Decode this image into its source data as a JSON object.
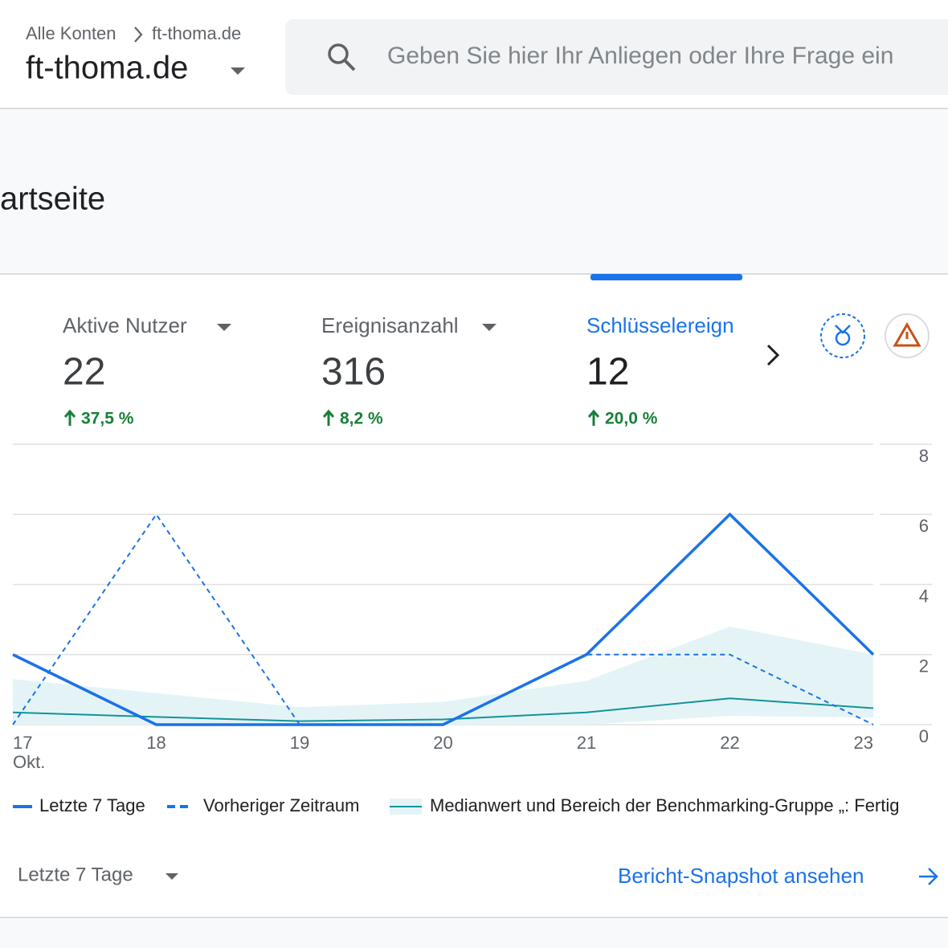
{
  "header": {
    "breadcrumb": [
      "Alle Konten",
      "ft-thoma.de"
    ],
    "property": "ft-thoma.de",
    "search_placeholder": "Geben Sie hier Ihr Anliegen oder Ihre Frage ein"
  },
  "page_title": "artseite",
  "metrics": [
    {
      "label": "Aktive Nutzer",
      "value": 22,
      "change": "37,5 %"
    },
    {
      "label": "Ereignisanzahl",
      "value": 316,
      "change": "8,2 %"
    },
    {
      "label": "Schlüsselereign",
      "value": 12,
      "change": "20,0 %"
    }
  ],
  "chart_data": {
    "type": "line",
    "categories": [
      "17",
      "18",
      "19",
      "20",
      "21",
      "22",
      "23"
    ],
    "x_sublabel": "Okt.",
    "ylim": [
      0,
      8
    ],
    "yticks": [
      0,
      2,
      4,
      6,
      8
    ],
    "grid": true,
    "series": [
      {
        "name": "Letzte 7 Tage",
        "color": "#1a73e8",
        "dashed": false,
        "values": [
          2,
          0,
          0,
          0,
          2,
          6,
          2
        ]
      },
      {
        "name": "Vorheriger Zeitraum",
        "color": "#1a73e8",
        "dashed": true,
        "values": [
          0,
          6,
          0,
          0,
          2,
          2,
          0
        ]
      },
      {
        "name": "Medianwert und Bereich der Benchmarking-Gruppe „: Fertig",
        "color": "#12939a",
        "fill": "#e4f4f6",
        "dashed": false,
        "values": [
          0.35,
          0.22,
          0.1,
          0.15,
          0.35,
          0.75,
          0.47
        ],
        "range_low": [
          0,
          0,
          0,
          0,
          0,
          0.25,
          0.2
        ],
        "range_high": [
          1.3,
          0.9,
          0.5,
          0.65,
          1.25,
          2.8,
          2.0
        ]
      }
    ]
  },
  "footer": {
    "period": "Letzte 7 Tage",
    "link": "Bericht-Snapshot ansehen"
  }
}
